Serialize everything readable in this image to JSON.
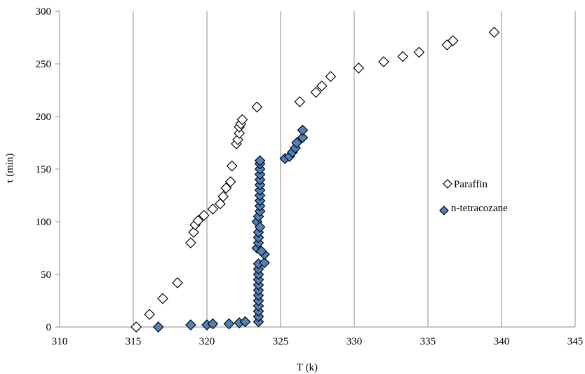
{
  "chart_data": {
    "type": "scatter",
    "title": "",
    "xlabel": "T (k)",
    "ylabel": "τ (min)",
    "xlim": [
      310,
      345
    ],
    "ylim": [
      0,
      300
    ],
    "xticks": [
      310,
      315,
      320,
      325,
      330,
      335,
      340,
      345
    ],
    "yticks": [
      0,
      50,
      100,
      150,
      200,
      250,
      300
    ],
    "grid": "vertical",
    "legend_position": "right",
    "series": [
      {
        "name": "Paraffin",
        "marker": "diamond-open",
        "color": "#ffffff",
        "points": [
          [
            315.2,
            0
          ],
          [
            316.1,
            12
          ],
          [
            317.0,
            27
          ],
          [
            318.0,
            42
          ],
          [
            318.9,
            80
          ],
          [
            319.1,
            90
          ],
          [
            319.2,
            97
          ],
          [
            319.4,
            101
          ],
          [
            319.8,
            106
          ],
          [
            320.4,
            112
          ],
          [
            320.9,
            117
          ],
          [
            321.1,
            124
          ],
          [
            321.3,
            132
          ],
          [
            321.6,
            138
          ],
          [
            321.7,
            153
          ],
          [
            322.0,
            174
          ],
          [
            322.1,
            178
          ],
          [
            322.2,
            184
          ],
          [
            322.2,
            190
          ],
          [
            322.3,
            193
          ],
          [
            322.4,
            197
          ],
          [
            323.4,
            209
          ],
          [
            326.3,
            214
          ],
          [
            327.4,
            223
          ],
          [
            327.8,
            229
          ],
          [
            328.4,
            238
          ],
          [
            330.3,
            246
          ],
          [
            332.0,
            252
          ],
          [
            333.3,
            257
          ],
          [
            334.4,
            261
          ],
          [
            336.3,
            268
          ],
          [
            336.7,
            272
          ],
          [
            339.5,
            280
          ]
        ]
      },
      {
        "name": "n-tetracozane",
        "marker": "diamond-filled",
        "color": "#4f81bd",
        "points": [
          [
            316.7,
            0
          ],
          [
            318.9,
            2
          ],
          [
            320.0,
            2
          ],
          [
            320.4,
            3
          ],
          [
            321.5,
            3
          ],
          [
            322.2,
            4
          ],
          [
            322.6,
            5
          ],
          [
            323.5,
            5
          ],
          [
            323.5,
            10
          ],
          [
            323.5,
            15
          ],
          [
            323.5,
            20
          ],
          [
            323.5,
            25
          ],
          [
            323.5,
            30
          ],
          [
            323.5,
            35
          ],
          [
            323.5,
            40
          ],
          [
            323.5,
            45
          ],
          [
            323.5,
            50
          ],
          [
            323.5,
            55
          ],
          [
            323.5,
            60
          ],
          [
            323.4,
            75
          ],
          [
            323.5,
            80
          ],
          [
            323.5,
            85
          ],
          [
            323.5,
            90
          ],
          [
            323.4,
            100
          ],
          [
            323.5,
            105
          ],
          [
            323.6,
            110
          ],
          [
            323.6,
            115
          ],
          [
            323.6,
            120
          ],
          [
            323.6,
            125
          ],
          [
            323.6,
            130
          ],
          [
            323.6,
            135
          ],
          [
            323.6,
            140
          ],
          [
            323.6,
            145
          ],
          [
            323.6,
            150
          ],
          [
            323.6,
            155
          ],
          [
            323.6,
            158
          ],
          [
            323.9,
            61
          ],
          [
            323.9,
            69
          ],
          [
            323.7,
            72
          ],
          [
            323.6,
            95
          ],
          [
            325.3,
            160
          ],
          [
            325.6,
            162
          ],
          [
            325.8,
            166
          ],
          [
            326.0,
            170
          ],
          [
            326.1,
            175
          ],
          [
            326.5,
            180
          ],
          [
            326.5,
            187
          ]
        ]
      }
    ]
  }
}
